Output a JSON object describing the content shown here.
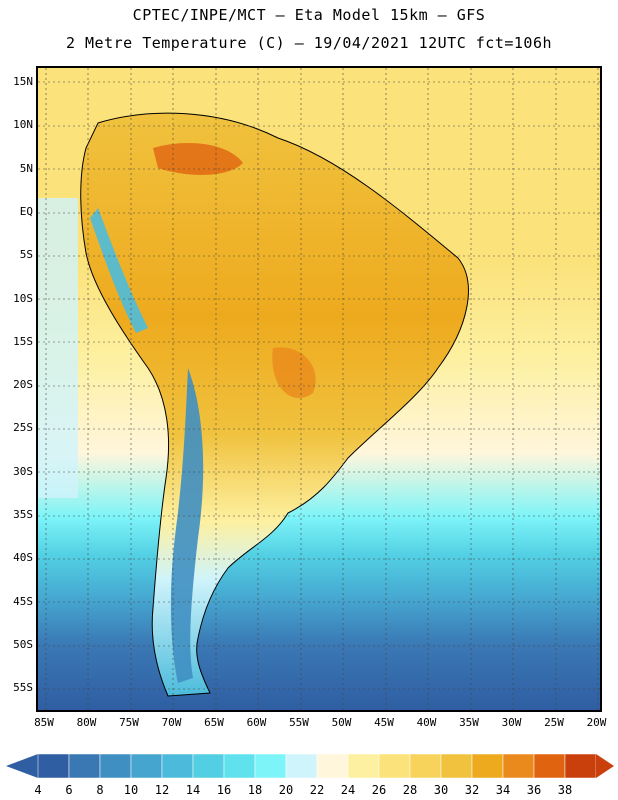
{
  "header": {
    "line1": "CPTEC/INPE/MCT –  Eta Model 15km – GFS",
    "line2": "2 Metre Temperature (C) – 19/04/2021 12UTC fct=106h"
  },
  "map": {
    "lat_labels": [
      "15N",
      "10N",
      "5N",
      "EQ",
      "5S",
      "10S",
      "15S",
      "20S",
      "25S",
      "30S",
      "35S",
      "40S",
      "45S",
      "50S",
      "55S"
    ],
    "lon_labels": [
      "85W",
      "80W",
      "75W",
      "70W",
      "65W",
      "60W",
      "55W",
      "50W",
      "45W",
      "40W",
      "35W",
      "30W",
      "25W",
      "20W"
    ]
  },
  "colorbar": {
    "levels": [
      "4",
      "6",
      "8",
      "10",
      "12",
      "14",
      "16",
      "18",
      "20",
      "22",
      "24",
      "26",
      "28",
      "30",
      "32",
      "34",
      "36",
      "38"
    ],
    "colors": [
      "#2f5ea3",
      "#3a78b4",
      "#3f8fc2",
      "#45a5cf",
      "#4cbbdb",
      "#52cfe3",
      "#5fe2ee",
      "#7df4f8",
      "#cff4fb",
      "#fff6dc",
      "#fdf0a0",
      "#fbe27a",
      "#f7d35c",
      "#f0c23e",
      "#eeaa1e",
      "#ea8a1c",
      "#e06410",
      "#c9400c"
    ],
    "low_end_color": "#2f5ea3",
    "high_end_color": "#c9400c"
  }
}
